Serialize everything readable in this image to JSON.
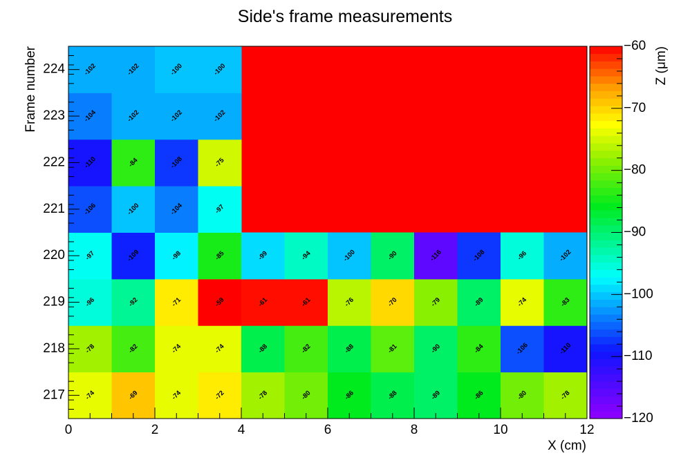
{
  "chart_data": {
    "type": "heatmap",
    "title": "Side's frame measurements",
    "xlabel": "X (cm)",
    "ylabel": "Frame number",
    "zlabel": "Z (μm)",
    "xlim": [
      0,
      12
    ],
    "x_ticks": [
      "0",
      "2",
      "4",
      "6",
      "8",
      "10",
      "12"
    ],
    "y_categories": [
      "217",
      "218",
      "219",
      "220",
      "221",
      "222",
      "223",
      "224"
    ],
    "z_range": [
      -120,
      -60
    ],
    "z_ticks": [
      "−60",
      "−70",
      "−80",
      "−90",
      "−100",
      "−110",
      "−120"
    ],
    "x_bin_centers": [
      0.5,
      1.5,
      2.5,
      3.5,
      4.5,
      5.5,
      6.5,
      7.5,
      8.5,
      9.5,
      10.5,
      11.5
    ],
    "rows": [
      {
        "frame": "217",
        "values": [
          -74,
          -69,
          -74,
          -72,
          -78,
          -80,
          -86,
          -88,
          -89,
          -86,
          -80,
          -78
        ]
      },
      {
        "frame": "218",
        "values": [
          -78,
          -82,
          -74,
          -74,
          -88,
          -82,
          -88,
          -81,
          -90,
          -84,
          -106,
          -110
        ]
      },
      {
        "frame": "219",
        "values": [
          -96,
          -92,
          -71,
          -59,
          -61,
          -61,
          -76,
          -70,
          -79,
          -89,
          -74,
          -83
        ]
      },
      {
        "frame": "220",
        "values": [
          -97,
          -109,
          -98,
          -85,
          -99,
          -94,
          -100,
          -90,
          -116,
          -108,
          -96,
          -102
        ]
      },
      {
        "frame": "221",
        "values": [
          -106,
          -100,
          -104,
          -97,
          null,
          null,
          null,
          null,
          null,
          null,
          null,
          null
        ]
      },
      {
        "frame": "222",
        "values": [
          -110,
          -84,
          -108,
          -75,
          null,
          null,
          null,
          null,
          null,
          null,
          null,
          null
        ]
      },
      {
        "frame": "223",
        "values": [
          -104,
          -102,
          -102,
          -102,
          null,
          null,
          null,
          null,
          null,
          null,
          null,
          null
        ]
      },
      {
        "frame": "224",
        "values": [
          -102,
          -102,
          -100,
          -100,
          null,
          null,
          null,
          null,
          null,
          null,
          null,
          null
        ]
      }
    ],
    "empty_region_color": "#ff0000",
    "overflow_color": "#ff0000",
    "palette": "rainbow (violet → blue → cyan → green → yellow → orange → red)",
    "grid": false,
    "legend": "color bar on right"
  }
}
